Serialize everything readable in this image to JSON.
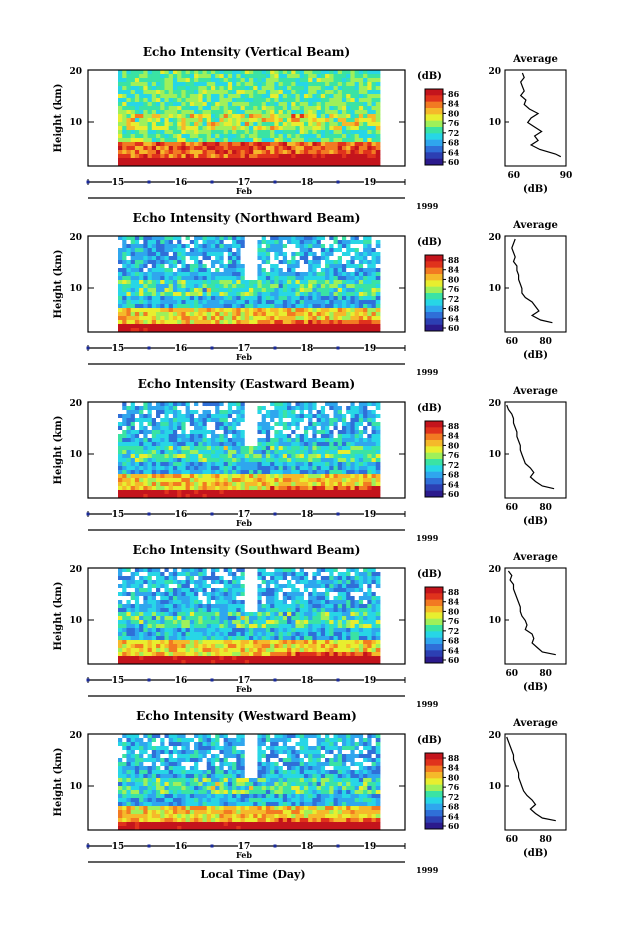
{
  "xlabel": "Local Time (Day)",
  "chart_data": [
    {
      "type": "heatmap",
      "title": "Echo Intensity (Vertical Beam)",
      "ylabel": "Height (km)",
      "yticks": [
        "20",
        "10"
      ],
      "ylim": [
        0,
        20
      ],
      "xticks": [
        "15",
        "16",
        "17",
        "18",
        "19"
      ],
      "month": "Feb",
      "year": "1999",
      "colorbar": {
        "unit": "(dB)",
        "ticks": [
          "86",
          "84",
          "80",
          "76",
          "72",
          "68",
          "64",
          "60"
        ]
      },
      "profile": {
        "title": "Average",
        "xlabel": "(dB)",
        "xticks": [
          "60",
          "90"
        ],
        "xlim": [
          55,
          90
        ],
        "yticks": [
          "20",
          "10"
        ],
        "points": [
          [
            65,
            20
          ],
          [
            66,
            19
          ],
          [
            64,
            18
          ],
          [
            65,
            17
          ],
          [
            66,
            16
          ],
          [
            64,
            15
          ],
          [
            67,
            14
          ],
          [
            66,
            13
          ],
          [
            69,
            12
          ],
          [
            74,
            11
          ],
          [
            70,
            10
          ],
          [
            68,
            9
          ],
          [
            72,
            8
          ],
          [
            76,
            7
          ],
          [
            72,
            6
          ],
          [
            74,
            5
          ],
          [
            70,
            4
          ],
          [
            75,
            3
          ],
          [
            84,
            2
          ],
          [
            87,
            1.4
          ]
        ]
      }
    },
    {
      "type": "heatmap",
      "title": "Echo Intensity (Northward Beam)",
      "ylabel": "Height (km)",
      "yticks": [
        "20",
        "10"
      ],
      "ylim": [
        0,
        20
      ],
      "xticks": [
        "15",
        "16",
        "17",
        "18",
        "19"
      ],
      "month": "Feb",
      "year": "1999",
      "colorbar": {
        "unit": "(dB)",
        "ticks": [
          "88",
          "84",
          "80",
          "76",
          "72",
          "68",
          "64",
          "60"
        ]
      },
      "profile": {
        "title": "Average",
        "xlabel": "(dB)",
        "xticks": [
          "60",
          "80"
        ],
        "xlim": [
          56,
          92
        ],
        "yticks": [
          "20",
          "10"
        ],
        "points": [
          [
            62,
            20
          ],
          [
            61,
            19
          ],
          [
            60,
            18
          ],
          [
            61,
            17
          ],
          [
            62,
            16
          ],
          [
            61,
            15
          ],
          [
            63,
            14
          ],
          [
            63,
            13
          ],
          [
            64,
            12
          ],
          [
            64,
            11
          ],
          [
            65,
            10
          ],
          [
            66,
            9
          ],
          [
            66,
            8
          ],
          [
            68,
            7
          ],
          [
            72,
            6
          ],
          [
            74,
            5
          ],
          [
            76,
            4
          ],
          [
            72,
            3
          ],
          [
            77,
            2
          ],
          [
            84,
            1.4
          ]
        ]
      }
    },
    {
      "type": "heatmap",
      "title": "Echo Intensity (Eastward Beam)",
      "ylabel": "Height (km)",
      "yticks": [
        "20",
        "10"
      ],
      "ylim": [
        0,
        20
      ],
      "xticks": [
        "15",
        "16",
        "17",
        "18",
        "19"
      ],
      "month": "Feb",
      "year": "1999",
      "colorbar": {
        "unit": "(dB)",
        "ticks": [
          "88",
          "84",
          "80",
          "76",
          "72",
          "68",
          "64",
          "60"
        ]
      },
      "profile": {
        "title": "Average",
        "xlabel": "(dB)",
        "xticks": [
          "60",
          "80"
        ],
        "xlim": [
          56,
          92
        ],
        "yticks": [
          "20",
          "10"
        ],
        "points": [
          [
            57,
            20
          ],
          [
            58,
            19
          ],
          [
            60,
            18
          ],
          [
            61,
            17
          ],
          [
            61,
            16
          ],
          [
            62,
            15
          ],
          [
            63,
            14
          ],
          [
            63,
            13
          ],
          [
            64,
            12
          ],
          [
            65,
            11
          ],
          [
            65,
            10
          ],
          [
            66,
            9
          ],
          [
            67,
            8
          ],
          [
            68,
            7
          ],
          [
            71,
            6
          ],
          [
            73,
            5
          ],
          [
            71,
            4
          ],
          [
            74,
            3
          ],
          [
            78,
            2
          ],
          [
            85,
            1.4
          ]
        ]
      }
    },
    {
      "type": "heatmap",
      "title": "Echo Intensity (Southward Beam)",
      "ylabel": "Height (km)",
      "yticks": [
        "20",
        "10"
      ],
      "ylim": [
        0,
        20
      ],
      "xticks": [
        "15",
        "16",
        "17",
        "18",
        "19"
      ],
      "month": "Feb",
      "year": "1999",
      "colorbar": {
        "unit": "(dB)",
        "ticks": [
          "88",
          "84",
          "80",
          "76",
          "72",
          "68",
          "64",
          "60"
        ]
      },
      "profile": {
        "title": "Average",
        "xlabel": "(dB)",
        "xticks": [
          "60",
          "80"
        ],
        "xlim": [
          56,
          92
        ],
        "yticks": [
          "20",
          "10"
        ],
        "points": [
          [
            58,
            20
          ],
          [
            60,
            19
          ],
          [
            59,
            18
          ],
          [
            61,
            17
          ],
          [
            61,
            16
          ],
          [
            62,
            15
          ],
          [
            63,
            14
          ],
          [
            64,
            13
          ],
          [
            65,
            12
          ],
          [
            65,
            11
          ],
          [
            66,
            10
          ],
          [
            68,
            9
          ],
          [
            69,
            8
          ],
          [
            68,
            7
          ],
          [
            72,
            6
          ],
          [
            73,
            5
          ],
          [
            72,
            4
          ],
          [
            75,
            3
          ],
          [
            78,
            2
          ],
          [
            86,
            1.4
          ]
        ]
      }
    },
    {
      "type": "heatmap",
      "title": "Echo Intensity (Westward Beam)",
      "ylabel": "Height (km)",
      "yticks": [
        "20",
        "10"
      ],
      "ylim": [
        0,
        20
      ],
      "xticks": [
        "15",
        "16",
        "17",
        "18",
        "19"
      ],
      "month": "Feb",
      "year": "1999",
      "colorbar": {
        "unit": "(dB)",
        "ticks": [
          "88",
          "84",
          "80",
          "76",
          "72",
          "68",
          "64",
          "60"
        ]
      },
      "profile": {
        "title": "Average",
        "xlabel": "(dB)",
        "xticks": [
          "60",
          "80"
        ],
        "xlim": [
          56,
          92
        ],
        "yticks": [
          "20",
          "10"
        ],
        "points": [
          [
            57,
            20
          ],
          [
            58,
            19
          ],
          [
            59,
            18
          ],
          [
            60,
            17
          ],
          [
            61,
            16
          ],
          [
            61,
            15
          ],
          [
            62,
            14
          ],
          [
            63,
            13
          ],
          [
            64,
            12
          ],
          [
            64,
            11
          ],
          [
            65,
            10
          ],
          [
            66,
            9
          ],
          [
            67,
            8
          ],
          [
            69,
            7
          ],
          [
            72,
            6
          ],
          [
            74,
            5
          ],
          [
            71,
            4
          ],
          [
            74,
            3
          ],
          [
            78,
            2
          ],
          [
            86,
            1.4
          ]
        ]
      }
    }
  ]
}
